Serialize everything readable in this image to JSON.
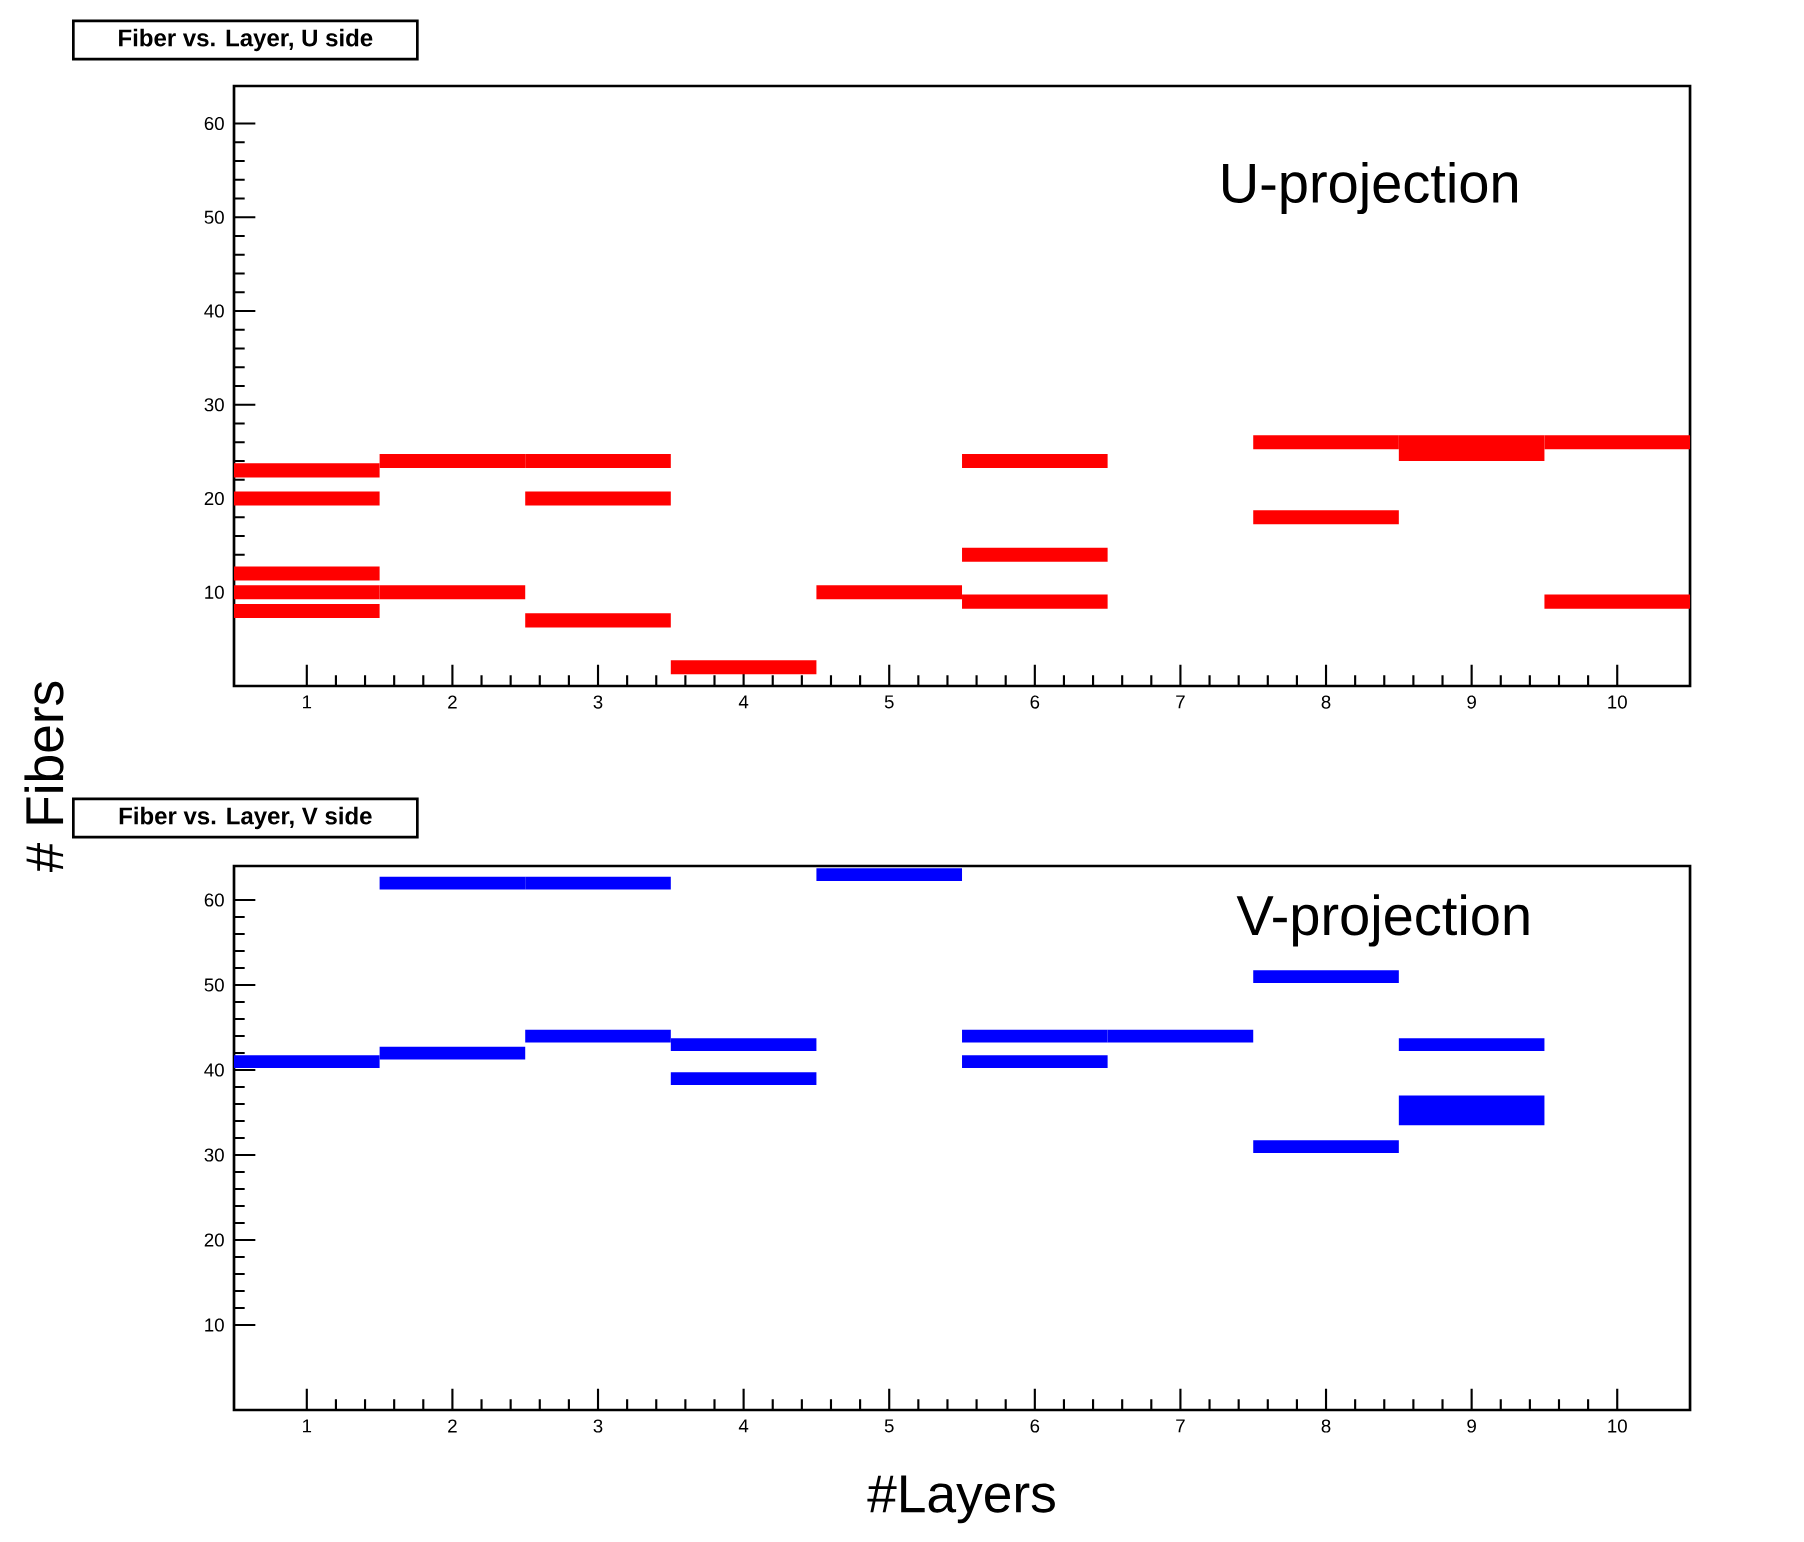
{
  "chart_data": [
    {
      "type": "bar",
      "title": "Fiber vs. Layer, U side",
      "ylabel": "# Fibers",
      "annotations": [
        "U-projection"
      ],
      "categories": [
        "1",
        "2",
        "3",
        "4",
        "5",
        "6",
        "7",
        "8",
        "9",
        "10"
      ],
      "ylim": [
        0,
        64
      ],
      "yticks": [
        10,
        20,
        30,
        40,
        50,
        60
      ],
      "series": [
        {
          "color": "#ff0000",
          "base": [
            22.25,
            23.25,
            23.25,
            1.25,
            9.25,
            23.25,
            null,
            25.25,
            24,
            25.25
          ],
          "values": [
            1.5,
            1.5,
            1.5,
            1.5,
            1.5,
            1.5,
            null,
            1.5,
            2.75,
            1.5
          ]
        },
        {
          "color": "#ff0000",
          "base": [
            19.25,
            9.25,
            19.25,
            null,
            null,
            13.25,
            null,
            17.25,
            null,
            8.25
          ],
          "values": [
            1.5,
            1.5,
            1.5,
            null,
            null,
            1.5,
            null,
            1.5,
            null,
            1.5
          ]
        },
        {
          "color": "#ff0000",
          "base": [
            11.25,
            null,
            6.25,
            null,
            null,
            8.25,
            null,
            null,
            null,
            null
          ],
          "values": [
            1.5,
            null,
            1.5,
            null,
            null,
            1.5,
            null,
            null,
            null,
            null
          ]
        },
        {
          "color": "#ff0000",
          "base": [
            9.25,
            null,
            null,
            null,
            null,
            null,
            null,
            null,
            null,
            null
          ],
          "values": [
            1.5,
            null,
            null,
            null,
            null,
            null,
            null,
            null,
            null,
            null
          ]
        },
        {
          "color": "#ff0000",
          "base": [
            7.25,
            null,
            null,
            null,
            null,
            null,
            null,
            null,
            null,
            null
          ],
          "values": [
            1.5,
            null,
            null,
            null,
            null,
            null,
            null,
            null,
            null,
            null
          ]
        }
      ]
    },
    {
      "type": "bar",
      "title": "Fiber vs. Layer, V side",
      "xlabel": "#Layers",
      "annotations": [
        "V-projection"
      ],
      "categories": [
        "1",
        "2",
        "3",
        "4",
        "5",
        "6",
        "7",
        "8",
        "9",
        "10"
      ],
      "ylim": [
        0,
        64
      ],
      "yticks": [
        10,
        20,
        30,
        40,
        50,
        60
      ],
      "series": [
        {
          "color": "#0000ff",
          "base": [
            40.25,
            61.25,
            61.25,
            42.25,
            62.25,
            43.25,
            43.25,
            50.25,
            42.25,
            null
          ],
          "values": [
            1.5,
            1.5,
            1.5,
            1.5,
            1.5,
            1.5,
            1.5,
            1.5,
            1.5,
            null
          ]
        },
        {
          "color": "#0000ff",
          "base": [
            null,
            41.25,
            43.25,
            38.25,
            null,
            40.25,
            null,
            30.25,
            33.5,
            null
          ],
          "values": [
            null,
            1.5,
            1.5,
            1.5,
            null,
            1.5,
            null,
            1.5,
            3.5,
            null
          ]
        }
      ]
    }
  ]
}
